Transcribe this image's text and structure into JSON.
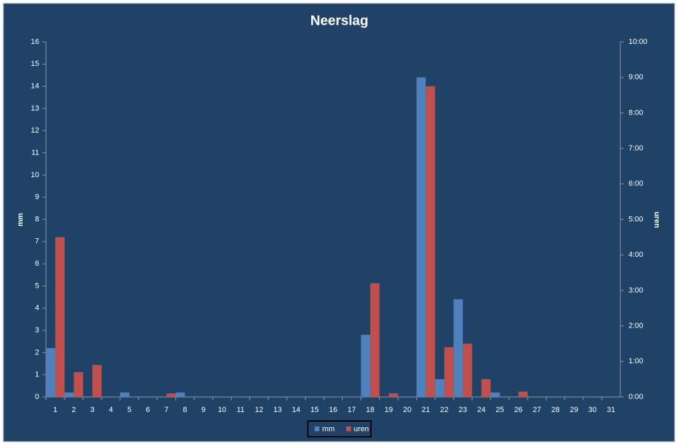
{
  "chart_data": {
    "type": "bar",
    "title": "Neerslag",
    "y_label": "mm",
    "y2_label": "uren",
    "categories": [
      "1",
      "2",
      "3",
      "4",
      "5",
      "6",
      "7",
      "8",
      "9",
      "10",
      "11",
      "12",
      "13",
      "14",
      "15",
      "16",
      "17",
      "18",
      "19",
      "20",
      "21",
      "22",
      "23",
      "24",
      "25",
      "26",
      "27",
      "28",
      "29",
      "30",
      "31"
    ],
    "series": [
      {
        "name": "mm",
        "color": "#4f81bd",
        "values": [
          2.2,
          0.2,
          0,
          0,
          0.2,
          0,
          0,
          0.2,
          0,
          0,
          0,
          0,
          0,
          0,
          0,
          0,
          0,
          2.8,
          0,
          0,
          14.4,
          0.8,
          4.4,
          0,
          0.2,
          0,
          0,
          0,
          0,
          0,
          0
        ]
      },
      {
        "name": "uren",
        "color": "#c0504d",
        "axis": "y2",
        "values": [
          4.5,
          0.7,
          0.9,
          0,
          0,
          0,
          0.1,
          0,
          0,
          0,
          0,
          0,
          0,
          0,
          0,
          0,
          0,
          3.2,
          0.1,
          0,
          8.75,
          1.4,
          1.5,
          0.5,
          0,
          0.15,
          0,
          0,
          0,
          0,
          0
        ]
      }
    ],
    "ylim": [
      0,
      16
    ],
    "yticks": [
      0,
      1,
      2,
      3,
      4,
      5,
      6,
      7,
      8,
      9,
      10,
      11,
      12,
      13,
      14,
      15,
      16
    ],
    "y2lim": [
      0,
      10
    ],
    "y2ticks": [
      {
        "value": 0,
        "label": "0:00"
      },
      {
        "value": 1,
        "label": "1:00"
      },
      {
        "value": 2,
        "label": "2:00"
      },
      {
        "value": 3,
        "label": "3:00"
      },
      {
        "value": 4,
        "label": "4:00"
      },
      {
        "value": 5,
        "label": "5:00"
      },
      {
        "value": 6,
        "label": "6:00"
      },
      {
        "value": 7,
        "label": "7:00"
      },
      {
        "value": 8,
        "label": "8:00"
      },
      {
        "value": 9,
        "label": "9:00"
      },
      {
        "value": 10,
        "label": "10:00"
      }
    ],
    "legend": "bottom"
  }
}
